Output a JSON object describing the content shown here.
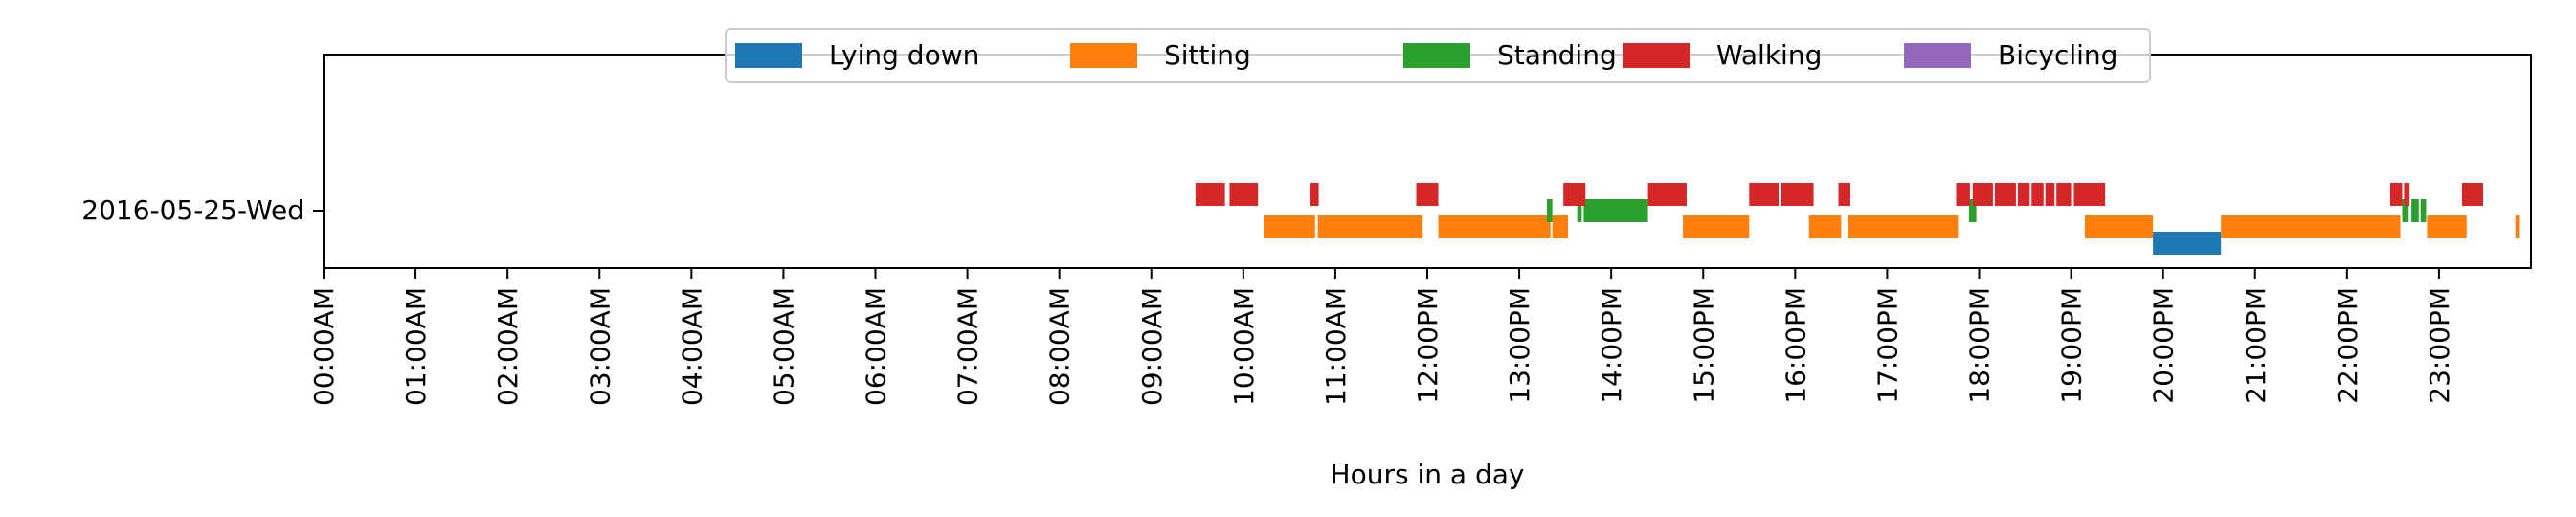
{
  "chart_data": {
    "type": "timeline",
    "title": "",
    "xlabel": "Hours in a day",
    "ylabel": "",
    "xlim": [
      0,
      24
    ],
    "x_ticks": [
      "00:00AM",
      "01:00AM",
      "02:00AM",
      "03:00AM",
      "04:00AM",
      "05:00AM",
      "06:00AM",
      "07:00AM",
      "08:00AM",
      "09:00AM",
      "10:00AM",
      "11:00AM",
      "12:00PM",
      "13:00PM",
      "14:00PM",
      "15:00PM",
      "16:00PM",
      "17:00PM",
      "18:00PM",
      "19:00PM",
      "20:00PM",
      "21:00PM",
      "22:00PM",
      "23:00PM"
    ],
    "categories": [
      "2016-05-25-Wed"
    ],
    "legend_position": "top-center",
    "grid": false,
    "series": [
      {
        "name": "Lying down",
        "color": "#1f77b4",
        "lane": -1.0,
        "intervals": [
          [
            19.89,
            20.63
          ]
        ]
      },
      {
        "name": "Sitting",
        "color": "#ff7f0e",
        "lane": -0.5,
        "intervals": [
          [
            10.22,
            10.78
          ],
          [
            10.81,
            11.95
          ],
          [
            12.12,
            13.34
          ],
          [
            13.36,
            13.53
          ],
          [
            14.78,
            15.5
          ],
          [
            16.15,
            16.5
          ],
          [
            16.57,
            17.77
          ],
          [
            19.15,
            19.89
          ],
          [
            20.63,
            22.58
          ],
          [
            22.87,
            23.3
          ],
          [
            23.83,
            23.87
          ]
        ]
      },
      {
        "name": "Standing",
        "color": "#2ca02c",
        "lane": 0.0,
        "intervals": [
          [
            13.3,
            13.36
          ],
          [
            13.63,
            13.68
          ],
          [
            13.7,
            14.4
          ],
          [
            17.89,
            17.97
          ],
          [
            22.6,
            22.67
          ],
          [
            22.7,
            22.78
          ],
          [
            22.8,
            22.86
          ]
        ]
      },
      {
        "name": "Walking",
        "color": "#d62728",
        "lane": 0.5,
        "intervals": [
          [
            9.48,
            9.8
          ],
          [
            9.85,
            10.16
          ],
          [
            10.73,
            10.82
          ],
          [
            11.88,
            12.12
          ],
          [
            13.48,
            13.72
          ],
          [
            14.4,
            14.82
          ],
          [
            15.5,
            15.82
          ],
          [
            15.84,
            16.2
          ],
          [
            16.47,
            16.6
          ],
          [
            17.75,
            17.9
          ],
          [
            17.93,
            18.15
          ],
          [
            18.17,
            18.4
          ],
          [
            18.42,
            18.55
          ],
          [
            18.57,
            18.7
          ],
          [
            18.72,
            18.82
          ],
          [
            18.84,
            19.0
          ],
          [
            19.03,
            19.37
          ],
          [
            22.47,
            22.6
          ],
          [
            22.62,
            22.68
          ],
          [
            23.25,
            23.48
          ]
        ]
      },
      {
        "name": "Bicycling",
        "color": "#9467bd",
        "lane": 1.0,
        "intervals": []
      }
    ]
  }
}
